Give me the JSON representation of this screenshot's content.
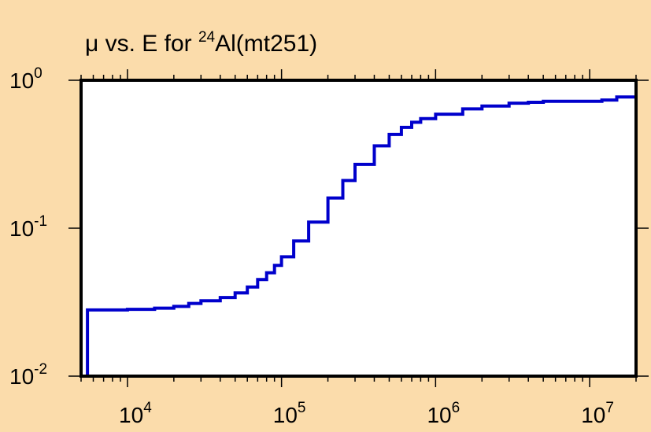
{
  "colors": {
    "background": "#fbdcab",
    "plot_area": "#ffffff",
    "series": "#0000cc",
    "axes": "#000000"
  },
  "chart_data": {
    "type": "line",
    "title_parts": {
      "prefix": "μ vs. E for ",
      "superscript": "24",
      "suffix": "Al(mt251)"
    },
    "xlabel": "",
    "ylabel": "",
    "x_scale": "log",
    "y_scale": "log",
    "xlim": [
      5000,
      20000000
    ],
    "ylim": [
      0.01,
      1
    ],
    "x_ticks": [
      {
        "base": "10",
        "exp": "4",
        "value": 10000
      },
      {
        "base": "10",
        "exp": "5",
        "value": 100000
      },
      {
        "base": "10",
        "exp": "6",
        "value": 1000000
      },
      {
        "base": "10",
        "exp": "7",
        "value": 10000000
      }
    ],
    "y_ticks": [
      {
        "base": "10",
        "exp": "0",
        "value": 1
      },
      {
        "base": "10",
        "exp": "-1",
        "value": 0.1
      },
      {
        "base": "10",
        "exp": "-2",
        "value": 0.01
      }
    ],
    "grid": false,
    "legend": "none",
    "series": [
      {
        "style": "step",
        "x": [
          5500,
          7000,
          10000,
          15000,
          20000,
          25000,
          30000,
          40000,
          50000,
          60000,
          70000,
          80000,
          90000,
          100000,
          120000,
          150000,
          200000,
          250000,
          300000,
          400000,
          500000,
          600000,
          700000,
          800000,
          1000000,
          1500000,
          2000000,
          3000000,
          4000000,
          5000000,
          6000000,
          8000000,
          10000000,
          12000000,
          15000000,
          20000000
        ],
        "y": [
          0.028,
          0.028,
          0.0283,
          0.0288,
          0.0296,
          0.031,
          0.0323,
          0.034,
          0.0365,
          0.04,
          0.045,
          0.05,
          0.056,
          0.064,
          0.082,
          0.11,
          0.16,
          0.21,
          0.27,
          0.36,
          0.43,
          0.48,
          0.52,
          0.55,
          0.59,
          0.64,
          0.67,
          0.7,
          0.71,
          0.72,
          0.72,
          0.72,
          0.72,
          0.735,
          0.77,
          0.8
        ]
      }
    ]
  }
}
